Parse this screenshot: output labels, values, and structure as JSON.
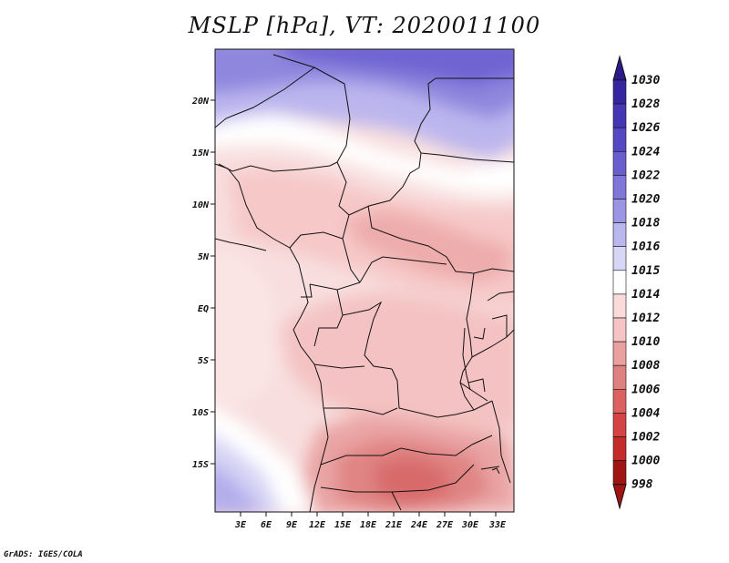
{
  "title": "MSLP [hPa], VT: 2020011100",
  "credit": "GrADS: IGES/COLA",
  "map": {
    "variable": "MSLP",
    "units": "hPa",
    "valid_time": "2020011100",
    "lon_labels": [
      "3E",
      "6E",
      "9E",
      "12E",
      "15E",
      "18E",
      "21E",
      "24E",
      "27E",
      "30E",
      "33E"
    ],
    "lat_labels": [
      "20N",
      "15N",
      "10N",
      "5N",
      "EQ",
      "5S",
      "10S",
      "15S"
    ]
  },
  "colorbar": {
    "levels": [
      "1030",
      "1028",
      "1026",
      "1024",
      "1022",
      "1020",
      "1018",
      "1016",
      "1015",
      "1014",
      "1012",
      "1010",
      "1008",
      "1006",
      "1004",
      "1002",
      "1000",
      "998"
    ],
    "colors": [
      "#2a1a8a",
      "#3526a0",
      "#4436b4",
      "#5648c4",
      "#6a5ecf",
      "#8076da",
      "#9c94e4",
      "#bab6ee",
      "#d8d6f6",
      "#ffffff",
      "#fbdada",
      "#f6c4c4",
      "#eaa0a0",
      "#e08080",
      "#dc6262",
      "#d44444",
      "#c42c2c",
      "#a01414"
    ]
  }
}
